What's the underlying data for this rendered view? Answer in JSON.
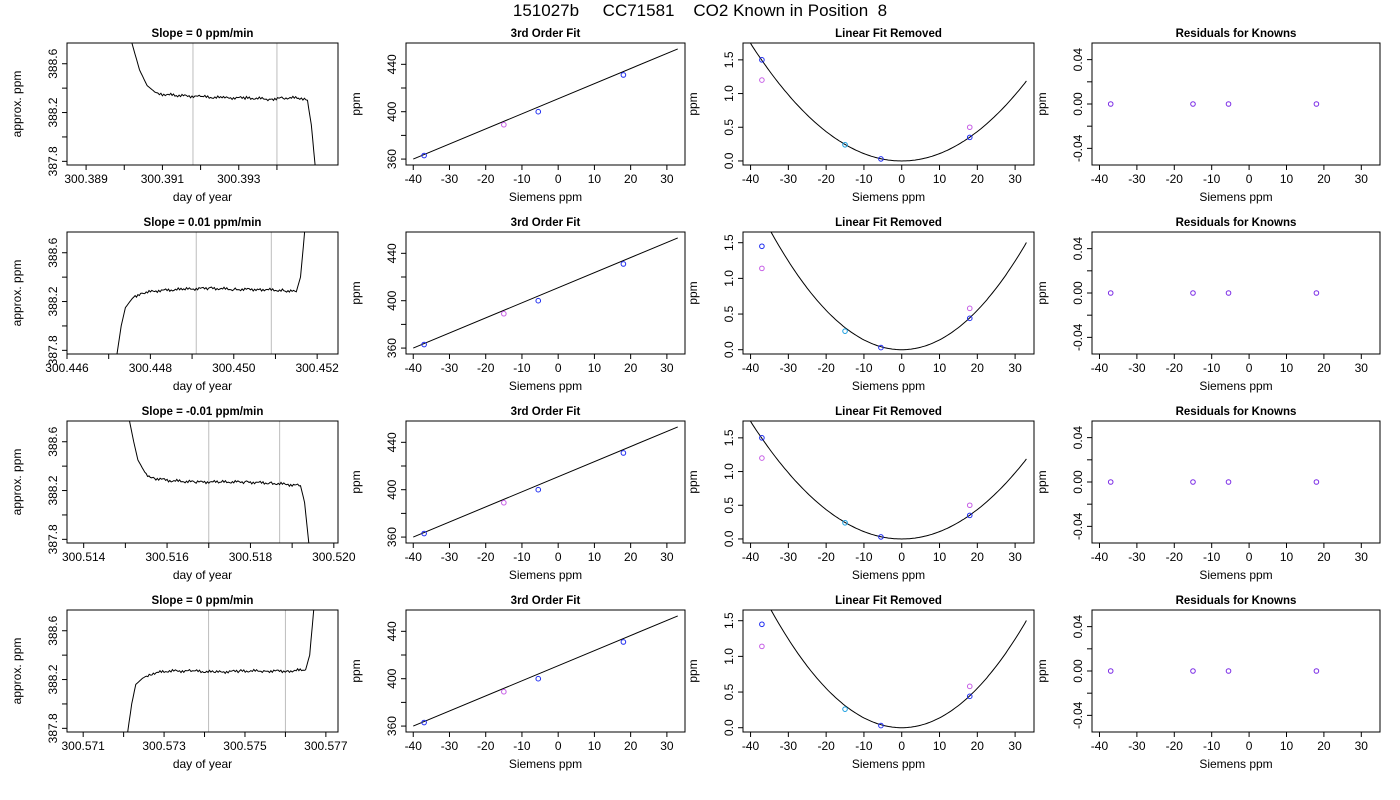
{
  "title": "151027b     CC71581    CO2 Known in Position  8",
  "chart_data": [
    {
      "type": "line",
      "title": "Slope =  0  ppm/min",
      "xlabel": "day of year",
      "ylabel": "approx. ppm",
      "xlim": [
        300.3885,
        300.3956
      ],
      "ylim": [
        387.77,
        388.77
      ],
      "xticks": [
        300.389,
        300.39,
        300.391,
        300.392,
        300.393,
        300.394
      ],
      "xtick_labels": [
        "300.389",
        "",
        "300.391",
        "",
        "300.393",
        ""
      ],
      "yticks": [
        387.8,
        388.0,
        388.2,
        388.4,
        388.6
      ],
      "ytick_labels": [
        "387.8",
        "",
        "388.2",
        "",
        "388.6"
      ],
      "vlines": [
        300.3918,
        300.394
      ],
      "x": [
        300.3902,
        300.3904,
        300.3906,
        300.3908,
        300.391,
        300.3914,
        300.392,
        300.3926,
        300.3932,
        300.3938,
        300.3942,
        300.3946,
        300.3948,
        300.3949,
        300.395
      ],
      "y": [
        388.77,
        388.55,
        388.42,
        388.37,
        388.35,
        388.34,
        388.33,
        388.32,
        388.32,
        388.31,
        388.32,
        388.32,
        388.3,
        388.1,
        387.77
      ]
    },
    {
      "type": "scatter",
      "title": "3rd Order Fit",
      "xlabel": "Siemens ppm",
      "ylabel": "ppm",
      "xlim": [
        -42,
        35
      ],
      "ylim": [
        355,
        458
      ],
      "xticks": [
        -40,
        -30,
        -20,
        -10,
        0,
        10,
        20,
        30
      ],
      "xtick_labels": [
        "-40",
        "-30",
        "-20",
        "-10",
        "0",
        "10",
        "20",
        "30"
      ],
      "yticks": [
        360,
        380,
        400,
        420,
        440
      ],
      "ytick_labels": [
        "360",
        "",
        "400",
        "",
        "440"
      ],
      "fit_line": {
        "x": [
          -40,
          33
        ],
        "y": [
          360,
          453
        ]
      },
      "points": [
        {
          "x": -37,
          "y": 363,
          "color": "#1e2cf0"
        },
        {
          "x": -15,
          "y": 389,
          "color": "#c65ee6"
        },
        {
          "x": -5.5,
          "y": 400,
          "color": "#1e2cf0"
        },
        {
          "x": 18,
          "y": 431,
          "color": "#1e2cf0"
        }
      ]
    },
    {
      "type": "scatter",
      "title": "Linear Fit Removed",
      "xlabel": "Siemens ppm",
      "ylabel": "ppm",
      "xlim": [
        -42,
        35
      ],
      "ylim": [
        -0.06,
        1.75
      ],
      "xticks": [
        -40,
        -30,
        -20,
        -10,
        0,
        10,
        20,
        30
      ],
      "xtick_labels": [
        "-40",
        "-30",
        "-20",
        "-10",
        "0",
        "10",
        "20",
        "30"
      ],
      "yticks": [
        0,
        0.5,
        1,
        1.5
      ],
      "ytick_labels": [
        "0.0",
        "0.5",
        "1.0",
        "1.5"
      ],
      "curve": {
        "a": 0.00109,
        "x0": 0,
        "y0": 0,
        "xmin": -40,
        "xmax": 33
      },
      "points": [
        {
          "x": -37,
          "y": 1.5,
          "color": "#1e2cf0"
        },
        {
          "x": -37,
          "y": 1.2,
          "color": "#c65ee6"
        },
        {
          "x": -15,
          "y": 0.24,
          "color": "#1a9fe0"
        },
        {
          "x": -5.5,
          "y": 0.03,
          "color": "#1e2cf0"
        },
        {
          "x": 18,
          "y": 0.35,
          "color": "#1e2cf0"
        },
        {
          "x": 18,
          "y": 0.5,
          "color": "#c65ee6"
        }
      ]
    },
    {
      "type": "scatter",
      "title": "Residuals for Knowns",
      "xlabel": "Siemens ppm",
      "ylabel": "ppm",
      "xlim": [
        -42,
        35
      ],
      "ylim": [
        -0.055,
        0.055
      ],
      "xticks": [
        -40,
        -30,
        -20,
        -10,
        0,
        10,
        20,
        30
      ],
      "xtick_labels": [
        "-40",
        "-30",
        "-20",
        "-10",
        "0",
        "10",
        "20",
        "30"
      ],
      "yticks": [
        -0.04,
        -0.02,
        0,
        0.02,
        0.04
      ],
      "ytick_labels": [
        "-0.04",
        "",
        "0.00",
        "",
        "0.04"
      ],
      "points": [
        {
          "x": -37,
          "y": 0,
          "color": "#7b2be6"
        },
        {
          "x": -15,
          "y": 0,
          "color": "#7b2be6"
        },
        {
          "x": -5.5,
          "y": 0,
          "color": "#7b2be6"
        },
        {
          "x": 18,
          "y": 0,
          "color": "#7b2be6"
        }
      ]
    },
    {
      "type": "line",
      "title": "Slope =  0.01  ppm/min",
      "xlabel": "day of year",
      "ylabel": "approx. ppm",
      "xlim": [
        300.446,
        300.4525
      ],
      "ylim": [
        387.77,
        388.77
      ],
      "xticks": [
        300.446,
        300.447,
        300.448,
        300.449,
        300.45,
        300.451,
        300.452
      ],
      "xtick_labels": [
        "300.446",
        "",
        "300.448",
        "",
        "300.450",
        "",
        "300.452"
      ],
      "yticks": [
        387.8,
        388.0,
        388.2,
        388.4,
        388.6
      ],
      "ytick_labels": [
        "387.8",
        "",
        "388.2",
        "",
        "388.6"
      ],
      "vlines": [
        300.4491,
        300.4509
      ],
      "x": [
        300.4472,
        300.4473,
        300.4474,
        300.4476,
        300.4478,
        300.4482,
        300.4488,
        300.4494,
        300.45,
        300.4506,
        300.4512,
        300.4515,
        300.4516,
        300.4517
      ],
      "y": [
        387.77,
        388.0,
        388.15,
        388.24,
        388.27,
        388.29,
        388.3,
        388.31,
        388.3,
        388.3,
        388.29,
        388.28,
        388.4,
        388.77
      ]
    },
    {
      "type": "scatter",
      "title": "3rd Order Fit",
      "xlabel": "Siemens ppm",
      "ylabel": "ppm",
      "xlim": [
        -42,
        35
      ],
      "ylim": [
        355,
        458
      ],
      "xticks": [
        -40,
        -30,
        -20,
        -10,
        0,
        10,
        20,
        30
      ],
      "xtick_labels": [
        "-40",
        "-30",
        "-20",
        "-10",
        "0",
        "10",
        "20",
        "30"
      ],
      "yticks": [
        360,
        380,
        400,
        420,
        440
      ],
      "ytick_labels": [
        "360",
        "",
        "400",
        "",
        "440"
      ],
      "fit_line": {
        "x": [
          -40,
          33
        ],
        "y": [
          360,
          453
        ]
      },
      "points": [
        {
          "x": -37,
          "y": 363,
          "color": "#1e2cf0"
        },
        {
          "x": -15,
          "y": 389,
          "color": "#c65ee6"
        },
        {
          "x": -5.5,
          "y": 400,
          "color": "#1e2cf0"
        },
        {
          "x": 18,
          "y": 431,
          "color": "#1e2cf0"
        }
      ]
    },
    {
      "type": "scatter",
      "title": "Linear Fit Removed",
      "xlabel": "Siemens ppm",
      "ylabel": "ppm",
      "xlim": [
        -42,
        35
      ],
      "ylim": [
        -0.06,
        1.65
      ],
      "xticks": [
        -40,
        -30,
        -20,
        -10,
        0,
        10,
        20,
        30
      ],
      "xtick_labels": [
        "-40",
        "-30",
        "-20",
        "-10",
        "0",
        "10",
        "20",
        "30"
      ],
      "yticks": [
        0,
        0.5,
        1,
        1.5
      ],
      "ytick_labels": [
        "0.0",
        "0.5",
        "1.0",
        "1.5"
      ],
      "curve": {
        "a": 0.00138,
        "x0": 0,
        "y0": 0,
        "xmin": -40,
        "xmax": 33
      },
      "points": [
        {
          "x": -37,
          "y": 1.45,
          "color": "#1e2cf0"
        },
        {
          "x": -37,
          "y": 1.14,
          "color": "#c65ee6"
        },
        {
          "x": -15,
          "y": 0.26,
          "color": "#1a9fe0"
        },
        {
          "x": -5.5,
          "y": 0.03,
          "color": "#1e2cf0"
        },
        {
          "x": 18,
          "y": 0.44,
          "color": "#1e2cf0"
        },
        {
          "x": 18,
          "y": 0.58,
          "color": "#c65ee6"
        }
      ]
    },
    {
      "type": "scatter",
      "title": "Residuals for Knowns",
      "xlabel": "Siemens ppm",
      "ylabel": "ppm",
      "xlim": [
        -42,
        35
      ],
      "ylim": [
        -0.055,
        0.055
      ],
      "xticks": [
        -40,
        -30,
        -20,
        -10,
        0,
        10,
        20,
        30
      ],
      "xtick_labels": [
        "-40",
        "-30",
        "-20",
        "-10",
        "0",
        "10",
        "20",
        "30"
      ],
      "yticks": [
        -0.04,
        -0.02,
        0,
        0.02,
        0.04
      ],
      "ytick_labels": [
        "-0.04",
        "",
        "0.00",
        "",
        "0.04"
      ],
      "points": [
        {
          "x": -37,
          "y": 0,
          "color": "#7b2be6"
        },
        {
          "x": -15,
          "y": 0,
          "color": "#7b2be6"
        },
        {
          "x": -5.5,
          "y": 0,
          "color": "#7b2be6"
        },
        {
          "x": 18,
          "y": 0,
          "color": "#7b2be6"
        }
      ]
    },
    {
      "type": "line",
      "title": "Slope =  -0.01  ppm/min",
      "xlabel": "day of year",
      "ylabel": "approx. ppm",
      "xlim": [
        300.5136,
        300.5201
      ],
      "ylim": [
        387.77,
        388.77
      ],
      "xticks": [
        300.514,
        300.515,
        300.516,
        300.517,
        300.518,
        300.519,
        300.52
      ],
      "xtick_labels": [
        "300.514",
        "",
        "300.516",
        "",
        "300.518",
        "",
        "300.520"
      ],
      "yticks": [
        387.8,
        388.0,
        388.2,
        388.4,
        388.6
      ],
      "ytick_labels": [
        "387.8",
        "",
        "388.2",
        "",
        "388.6"
      ],
      "vlines": [
        300.517,
        300.5187
      ],
      "x": [
        300.5151,
        300.5152,
        300.5153,
        300.5155,
        300.5157,
        300.5161,
        300.5167,
        300.5173,
        300.5179,
        300.5185,
        300.5189,
        300.5192,
        300.5193,
        300.5194
      ],
      "y": [
        388.77,
        388.6,
        388.45,
        388.33,
        388.3,
        388.28,
        388.27,
        388.27,
        388.27,
        388.26,
        388.25,
        388.24,
        388.1,
        387.77
      ]
    },
    {
      "type": "scatter",
      "title": "3rd Order Fit",
      "xlabel": "Siemens ppm",
      "ylabel": "ppm",
      "xlim": [
        -42,
        35
      ],
      "ylim": [
        355,
        458
      ],
      "xticks": [
        -40,
        -30,
        -20,
        -10,
        0,
        10,
        20,
        30
      ],
      "xtick_labels": [
        "-40",
        "-30",
        "-20",
        "-10",
        "0",
        "10",
        "20",
        "30"
      ],
      "yticks": [
        360,
        380,
        400,
        420,
        440
      ],
      "ytick_labels": [
        "360",
        "",
        "400",
        "",
        "440"
      ],
      "fit_line": {
        "x": [
          -40,
          33
        ],
        "y": [
          360,
          453
        ]
      },
      "points": [
        {
          "x": -37,
          "y": 363,
          "color": "#1e2cf0"
        },
        {
          "x": -15,
          "y": 389,
          "color": "#c65ee6"
        },
        {
          "x": -5.5,
          "y": 400,
          "color": "#1e2cf0"
        },
        {
          "x": 18,
          "y": 431,
          "color": "#1e2cf0"
        }
      ]
    },
    {
      "type": "scatter",
      "title": "Linear Fit Removed",
      "xlabel": "Siemens ppm",
      "ylabel": "ppm",
      "xlim": [
        -42,
        35
      ],
      "ylim": [
        -0.06,
        1.75
      ],
      "xticks": [
        -40,
        -30,
        -20,
        -10,
        0,
        10,
        20,
        30
      ],
      "xtick_labels": [
        "-40",
        "-30",
        "-20",
        "-10",
        "0",
        "10",
        "20",
        "30"
      ],
      "yticks": [
        0,
        0.5,
        1,
        1.5
      ],
      "ytick_labels": [
        "0.0",
        "0.5",
        "1.0",
        "1.5"
      ],
      "curve": {
        "a": 0.00109,
        "x0": 0,
        "y0": 0,
        "xmin": -40,
        "xmax": 33
      },
      "points": [
        {
          "x": -37,
          "y": 1.5,
          "color": "#1e2cf0"
        },
        {
          "x": -37,
          "y": 1.2,
          "color": "#c65ee6"
        },
        {
          "x": -15,
          "y": 0.24,
          "color": "#1a9fe0"
        },
        {
          "x": -5.5,
          "y": 0.03,
          "color": "#1e2cf0"
        },
        {
          "x": 18,
          "y": 0.35,
          "color": "#1e2cf0"
        },
        {
          "x": 18,
          "y": 0.5,
          "color": "#c65ee6"
        }
      ]
    },
    {
      "type": "scatter",
      "title": "Residuals for Knowns",
      "xlabel": "Siemens ppm",
      "ylabel": "ppm",
      "xlim": [
        -42,
        35
      ],
      "ylim": [
        -0.055,
        0.055
      ],
      "xticks": [
        -40,
        -30,
        -20,
        -10,
        0,
        10,
        20,
        30
      ],
      "xtick_labels": [
        "-40",
        "-30",
        "-20",
        "-10",
        "0",
        "10",
        "20",
        "30"
      ],
      "yticks": [
        -0.04,
        -0.02,
        0,
        0.02,
        0.04
      ],
      "ytick_labels": [
        "-0.04",
        "",
        "0.00",
        "",
        "0.04"
      ],
      "points": [
        {
          "x": -37,
          "y": 0,
          "color": "#7b2be6"
        },
        {
          "x": -15,
          "y": 0,
          "color": "#7b2be6"
        },
        {
          "x": -5.5,
          "y": 0,
          "color": "#7b2be6"
        },
        {
          "x": 18,
          "y": 0,
          "color": "#7b2be6"
        }
      ]
    },
    {
      "type": "line",
      "title": "Slope =  0  ppm/min",
      "xlabel": "day of year",
      "ylabel": "approx. ppm",
      "xlim": [
        300.5706,
        300.5773
      ],
      "ylim": [
        387.77,
        388.77
      ],
      "xticks": [
        300.571,
        300.572,
        300.573,
        300.574,
        300.575,
        300.576,
        300.577
      ],
      "xtick_labels": [
        "300.571",
        "",
        "300.573",
        "",
        "300.575",
        "",
        "300.577"
      ],
      "yticks": [
        387.8,
        388.0,
        388.2,
        388.4,
        388.6
      ],
      "ytick_labels": [
        "387.8",
        "",
        "388.2",
        "",
        "388.6"
      ],
      "vlines": [
        300.5741,
        300.576
      ],
      "x": [
        300.5721,
        300.5722,
        300.5723,
        300.5725,
        300.5727,
        300.5731,
        300.5737,
        300.5743,
        300.5749,
        300.5755,
        300.5761,
        300.5765,
        300.5766,
        300.5767
      ],
      "y": [
        387.77,
        388.0,
        388.16,
        388.22,
        388.25,
        388.27,
        388.27,
        388.26,
        388.27,
        388.27,
        388.27,
        388.28,
        388.4,
        388.77
      ]
    },
    {
      "type": "scatter",
      "title": "3rd Order Fit",
      "xlabel": "Siemens ppm",
      "ylabel": "ppm",
      "xlim": [
        -42,
        35
      ],
      "ylim": [
        355,
        458
      ],
      "xticks": [
        -40,
        -30,
        -20,
        -10,
        0,
        10,
        20,
        30
      ],
      "xtick_labels": [
        "-40",
        "-30",
        "-20",
        "-10",
        "0",
        "10",
        "20",
        "30"
      ],
      "yticks": [
        360,
        380,
        400,
        420,
        440
      ],
      "ytick_labels": [
        "360",
        "",
        "400",
        "",
        "440"
      ],
      "fit_line": {
        "x": [
          -40,
          33
        ],
        "y": [
          360,
          453
        ]
      },
      "points": [
        {
          "x": -37,
          "y": 363,
          "color": "#1e2cf0"
        },
        {
          "x": -15,
          "y": 389,
          "color": "#c65ee6"
        },
        {
          "x": -5.5,
          "y": 400,
          "color": "#1e2cf0"
        },
        {
          "x": 18,
          "y": 431,
          "color": "#1e2cf0"
        }
      ]
    },
    {
      "type": "scatter",
      "title": "Linear Fit Removed",
      "xlabel": "Siemens ppm",
      "ylabel": "ppm",
      "xlim": [
        -42,
        35
      ],
      "ylim": [
        -0.06,
        1.65
      ],
      "xticks": [
        -40,
        -30,
        -20,
        -10,
        0,
        10,
        20,
        30
      ],
      "xtick_labels": [
        "-40",
        "-30",
        "-20",
        "-10",
        "0",
        "10",
        "20",
        "30"
      ],
      "yticks": [
        0,
        0.5,
        1,
        1.5
      ],
      "ytick_labels": [
        "0.0",
        "0.5",
        "1.0",
        "1.5"
      ],
      "curve": {
        "a": 0.00138,
        "x0": 0,
        "y0": 0,
        "xmin": -40,
        "xmax": 33
      },
      "points": [
        {
          "x": -37,
          "y": 1.45,
          "color": "#1e2cf0"
        },
        {
          "x": -37,
          "y": 1.14,
          "color": "#c65ee6"
        },
        {
          "x": -15,
          "y": 0.26,
          "color": "#1a9fe0"
        },
        {
          "x": -5.5,
          "y": 0.03,
          "color": "#1e2cf0"
        },
        {
          "x": 18,
          "y": 0.44,
          "color": "#1e2cf0"
        },
        {
          "x": 18,
          "y": 0.58,
          "color": "#c65ee6"
        }
      ]
    },
    {
      "type": "scatter",
      "title": "Residuals for Knowns",
      "xlabel": "Siemens ppm",
      "ylabel": "ppm",
      "xlim": [
        -42,
        35
      ],
      "ylim": [
        -0.055,
        0.055
      ],
      "xticks": [
        -40,
        -30,
        -20,
        -10,
        0,
        10,
        20,
        30
      ],
      "xtick_labels": [
        "-40",
        "-30",
        "-20",
        "-10",
        "0",
        "10",
        "20",
        "30"
      ],
      "yticks": [
        -0.04,
        -0.02,
        0,
        0.02,
        0.04
      ],
      "ytick_labels": [
        "-0.04",
        "",
        "0.00",
        "",
        "0.04"
      ],
      "points": [
        {
          "x": -37,
          "y": 0,
          "color": "#7b2be6"
        },
        {
          "x": -15,
          "y": 0,
          "color": "#7b2be6"
        },
        {
          "x": -5.5,
          "y": 0,
          "color": "#7b2be6"
        },
        {
          "x": 18,
          "y": 0,
          "color": "#7b2be6"
        }
      ]
    }
  ]
}
